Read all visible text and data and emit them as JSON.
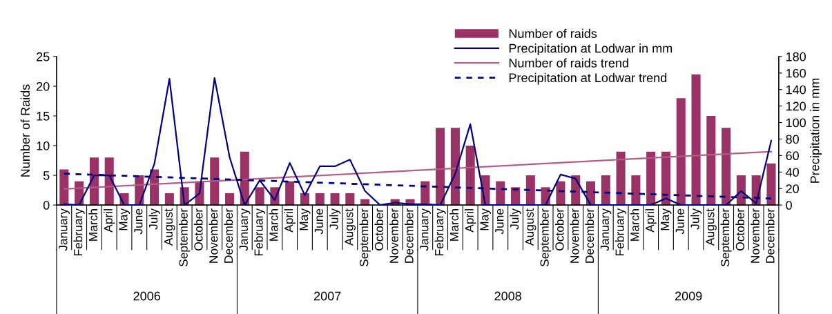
{
  "chart_data": {
    "type": "bar",
    "categories": [
      "January",
      "February",
      "March",
      "April",
      "May",
      "June",
      "July",
      "August",
      "September",
      "October",
      "November",
      "December",
      "January",
      "February",
      "March",
      "April",
      "May",
      "June",
      "July",
      "August",
      "September",
      "October",
      "November",
      "December",
      "January",
      "February",
      "March",
      "April",
      "May",
      "June",
      "July",
      "August",
      "September",
      "October",
      "November",
      "December",
      "January",
      "February",
      "March",
      "April",
      "May",
      "June",
      "July",
      "August",
      "September",
      "October",
      "November",
      "December"
    ],
    "ylabel": "Number of Raids",
    "y2label": "Precipitation in mm",
    "ylim": [
      0,
      25
    ],
    "yticks": [
      0,
      5,
      10,
      15,
      20,
      25
    ],
    "y2lim": [
      0,
      180
    ],
    "y2ticks": [
      0,
      20,
      40,
      60,
      80,
      100,
      120,
      140,
      160,
      180
    ],
    "annotations": [
      "2006",
      "2007",
      "2008",
      "2009"
    ],
    "legend": "top right",
    "grid": false,
    "series": [
      {
        "name": "Number of raids",
        "color": "#993366",
        "values": [
          6,
          4,
          8,
          8,
          2,
          5,
          6,
          2,
          3,
          4,
          8,
          2,
          9,
          3,
          3,
          4,
          2,
          2,
          2,
          2,
          1,
          0,
          1,
          1,
          4,
          13,
          13,
          10,
          5,
          4,
          3,
          5,
          3,
          4,
          5,
          4,
          5,
          9,
          5,
          9,
          9,
          18,
          22,
          15,
          13,
          5,
          5,
          7
        ]
      },
      {
        "name": "Precipitation at Lodwar in mm",
        "type": "line",
        "axis": "y2",
        "color": "#000080",
        "line_style": "solid",
        "values": [
          1,
          0,
          36,
          36,
          0,
          0,
          50,
          153,
          0,
          14,
          154,
          58,
          0,
          30,
          6,
          51,
          12,
          47,
          47,
          55,
          17,
          0,
          3,
          1,
          1,
          0,
          38,
          98,
          0,
          0,
          0,
          0,
          0,
          37,
          32,
          0,
          0,
          0,
          0,
          0,
          8,
          0,
          0,
          0,
          0,
          17,
          2,
          78
        ]
      },
      {
        "name": "Number of raids trend",
        "type": "line",
        "color": "#b35c88",
        "line_style": "solid",
        "values": [
          2.7,
          null,
          null,
          null,
          null,
          null,
          null,
          null,
          null,
          null,
          null,
          null,
          null,
          null,
          null,
          null,
          null,
          null,
          null,
          null,
          null,
          null,
          null,
          null,
          null,
          null,
          null,
          null,
          null,
          null,
          null,
          null,
          null,
          null,
          null,
          null,
          null,
          null,
          null,
          null,
          null,
          null,
          null,
          null,
          null,
          null,
          null,
          9
        ]
      },
      {
        "name": "Precipitation at Lodwar trend",
        "type": "line",
        "axis": "y2",
        "color": "#000080",
        "line_style": "dashed",
        "values": [
          38,
          null,
          null,
          null,
          null,
          null,
          null,
          null,
          null,
          null,
          null,
          null,
          null,
          null,
          null,
          null,
          null,
          null,
          null,
          null,
          null,
          null,
          null,
          null,
          null,
          null,
          null,
          null,
          null,
          null,
          null,
          null,
          null,
          null,
          null,
          null,
          null,
          null,
          null,
          null,
          null,
          null,
          null,
          null,
          null,
          null,
          null,
          8
        ]
      }
    ]
  }
}
